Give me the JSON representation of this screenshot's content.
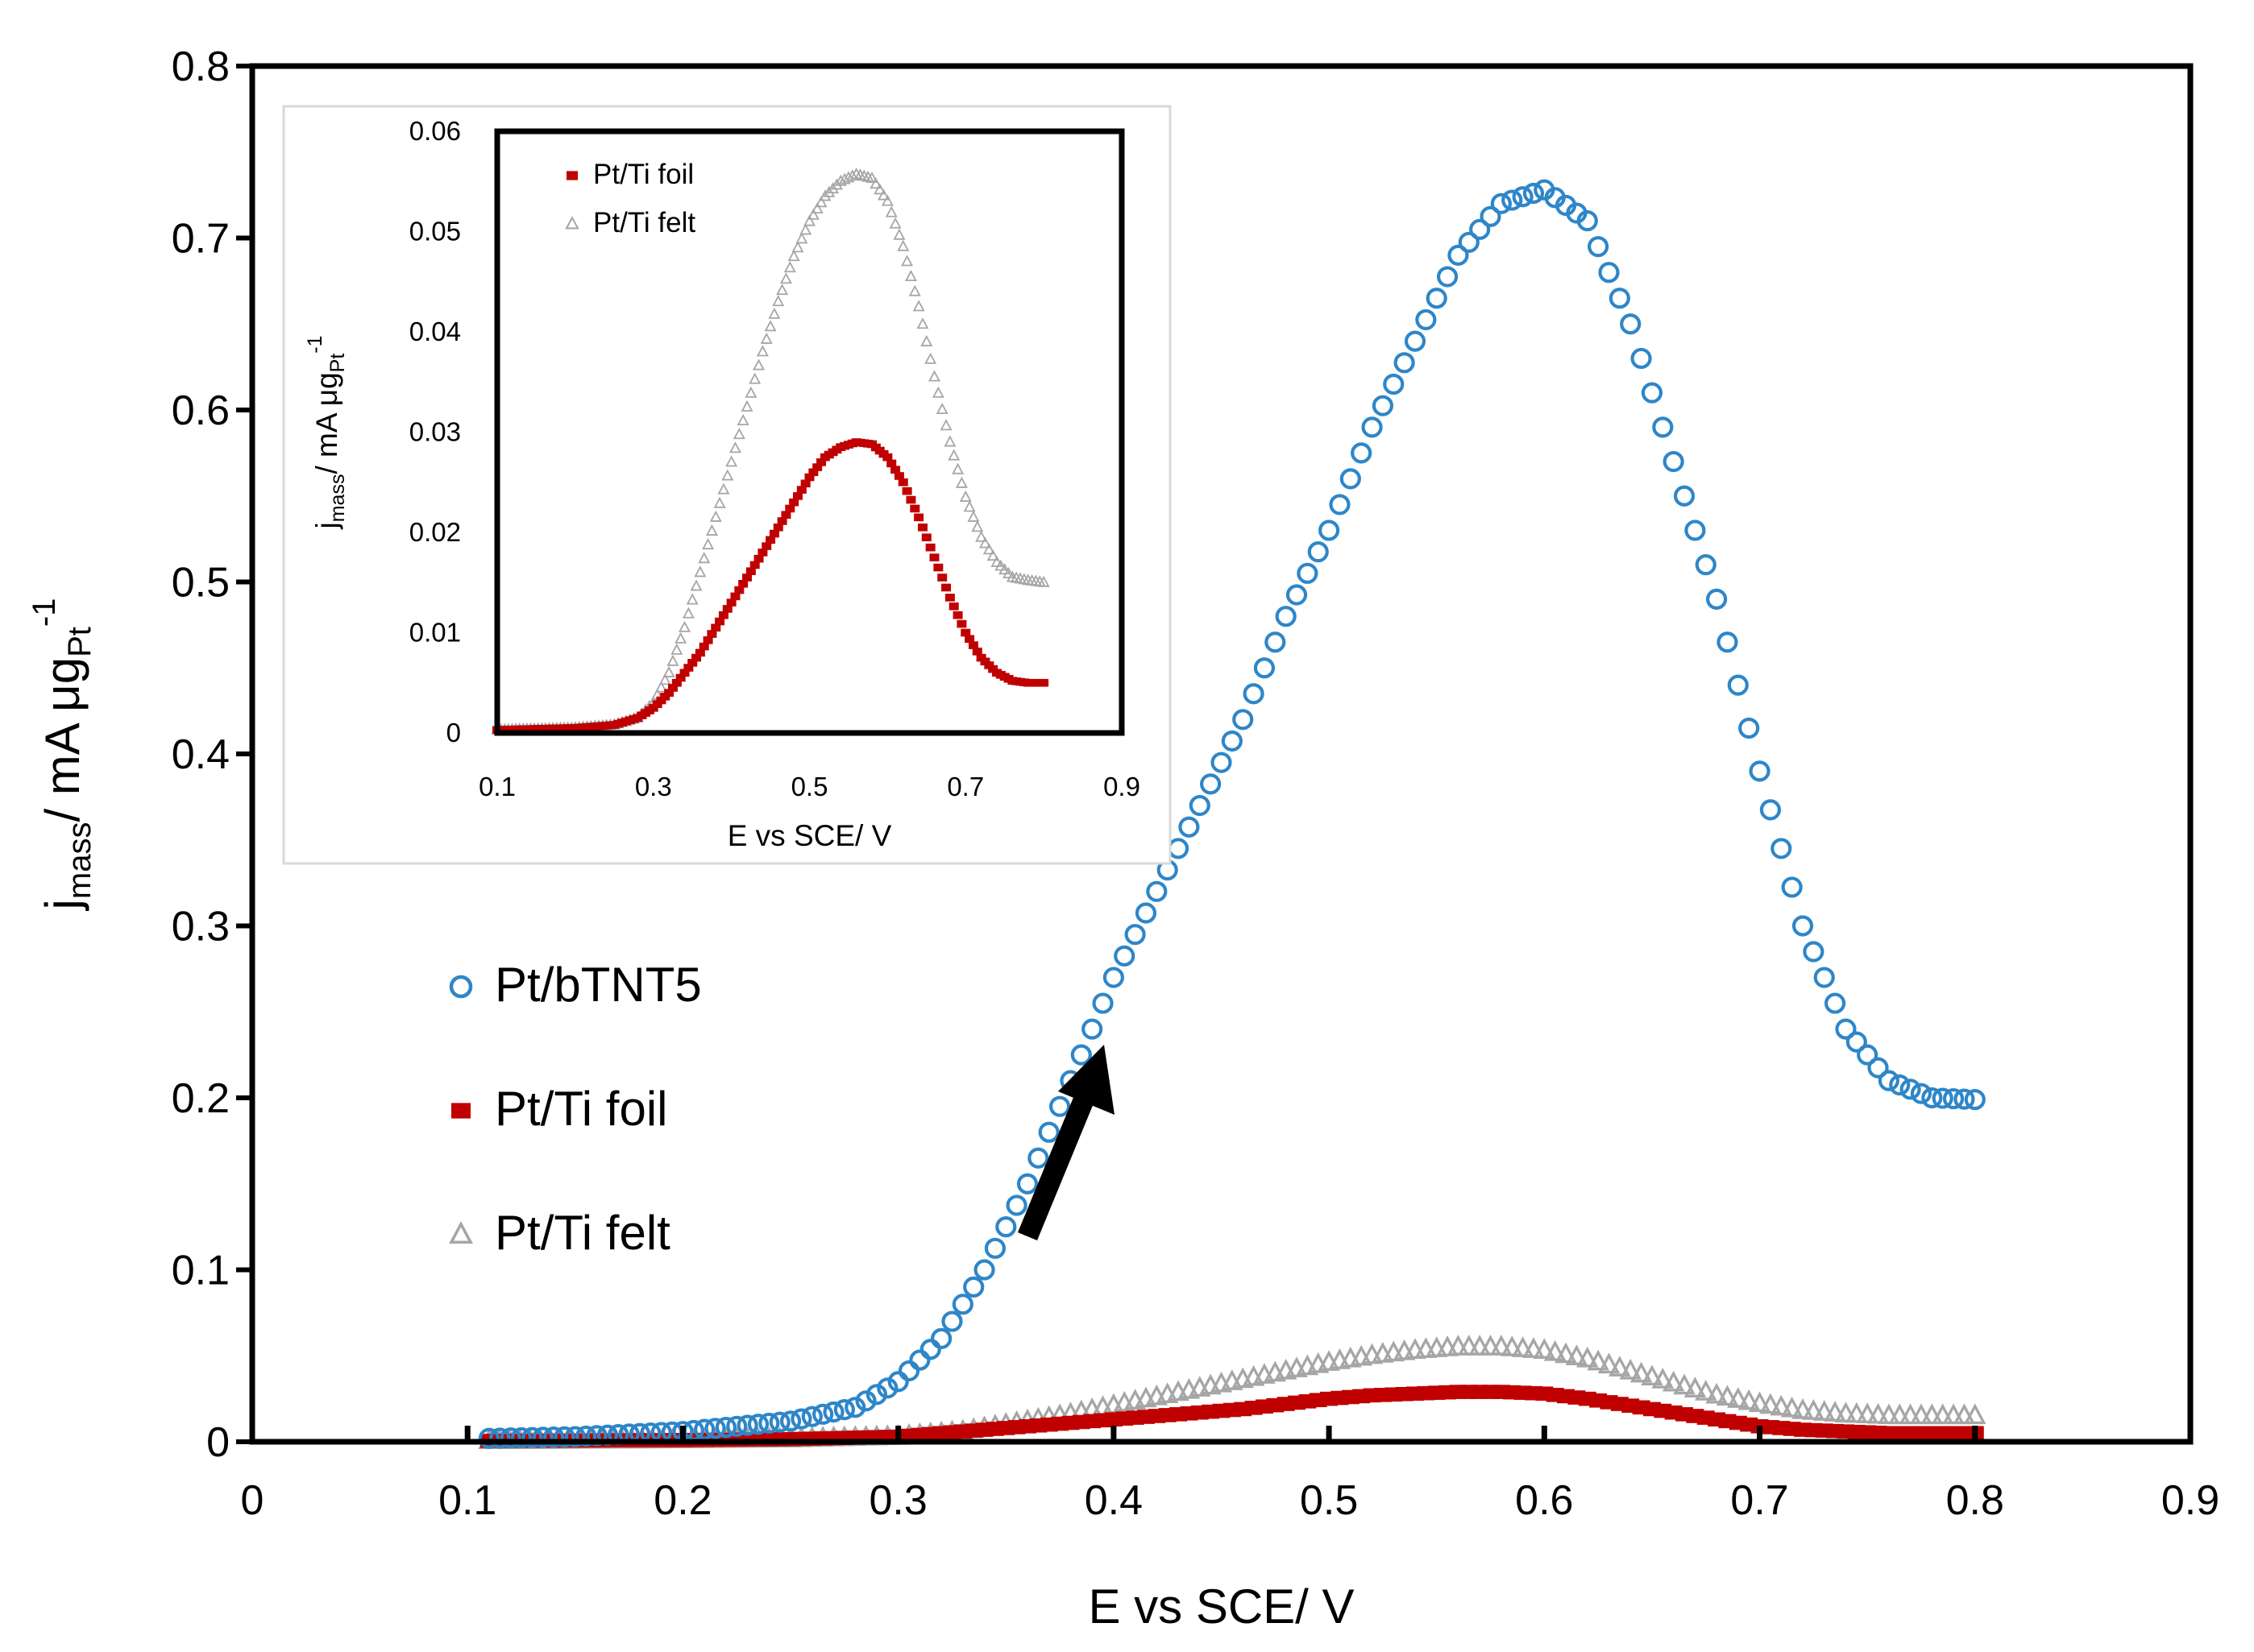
{
  "chart_data": [
    {
      "type": "scatter",
      "title": "",
      "xlabel": "E vs SCE/ V",
      "ylabel": {
        "j": "j",
        "sub": "mass",
        "unit": "/ mA μg",
        "unit_sub": "Pt",
        "unit_sup": "-1"
      },
      "xlim": [
        0,
        0.9
      ],
      "ylim": [
        0,
        0.8
      ],
      "x_ticks": [
        "0",
        "0.1",
        "0.2",
        "0.3",
        "0.4",
        "0.5",
        "0.6",
        "0.7",
        "0.8",
        "0.9"
      ],
      "y_ticks": [
        "0",
        "0.1",
        "0.2",
        "0.3",
        "0.4",
        "0.5",
        "0.6",
        "0.7",
        "0.8"
      ],
      "grid": false,
      "legend_position": "left-middle",
      "annotation": "black arrow pointing up-right toward the Pt/bTNT5 curve near E = 0.4 V",
      "series": [
        {
          "name": "Pt/bTNT5",
          "marker": "open-circle",
          "color": "#2E86C8",
          "points": [
            [
              0.11,
              0.002
            ],
            [
              0.15,
              0.003
            ],
            [
              0.2,
              0.006
            ],
            [
              0.25,
              0.012
            ],
            [
              0.28,
              0.02
            ],
            [
              0.3,
              0.035
            ],
            [
              0.32,
              0.06
            ],
            [
              0.34,
              0.1
            ],
            [
              0.36,
              0.15
            ],
            [
              0.38,
              0.21
            ],
            [
              0.4,
              0.27
            ],
            [
              0.42,
              0.32
            ],
            [
              0.44,
              0.37
            ],
            [
              0.46,
              0.42
            ],
            [
              0.48,
              0.48
            ],
            [
              0.5,
              0.53
            ],
            [
              0.52,
              0.59
            ],
            [
              0.54,
              0.64
            ],
            [
              0.56,
              0.69
            ],
            [
              0.58,
              0.72
            ],
            [
              0.6,
              0.728
            ],
            [
              0.62,
              0.71
            ],
            [
              0.64,
              0.65
            ],
            [
              0.66,
              0.57
            ],
            [
              0.68,
              0.49
            ],
            [
              0.7,
              0.39
            ],
            [
              0.72,
              0.3
            ],
            [
              0.74,
              0.24
            ],
            [
              0.76,
              0.21
            ],
            [
              0.78,
              0.2
            ],
            [
              0.8,
              0.199
            ]
          ]
        },
        {
          "name": "Pt/Ti foil",
          "marker": "filled-square",
          "color": "#C00000",
          "points": [
            [
              0.11,
              0.0005
            ],
            [
              0.2,
              0.001
            ],
            [
              0.25,
              0.0015
            ],
            [
              0.3,
              0.003
            ],
            [
              0.33,
              0.006
            ],
            [
              0.36,
              0.009
            ],
            [
              0.38,
              0.011
            ],
            [
              0.4,
              0.013
            ],
            [
              0.42,
              0.015
            ],
            [
              0.44,
              0.017
            ],
            [
              0.46,
              0.019
            ],
            [
              0.48,
              0.022
            ],
            [
              0.5,
              0.025
            ],
            [
              0.52,
              0.027
            ],
            [
              0.54,
              0.028
            ],
            [
              0.56,
              0.029
            ],
            [
              0.58,
              0.029
            ],
            [
              0.6,
              0.028
            ],
            [
              0.62,
              0.025
            ],
            [
              0.64,
              0.021
            ],
            [
              0.66,
              0.017
            ],
            [
              0.68,
              0.013
            ],
            [
              0.7,
              0.009
            ],
            [
              0.72,
              0.007
            ],
            [
              0.74,
              0.006
            ],
            [
              0.76,
              0.005
            ],
            [
              0.78,
              0.005
            ],
            [
              0.8,
              0.005
            ]
          ]
        },
        {
          "name": "Pt/Ti felt",
          "marker": "open-triangle",
          "color": "#A6A6A6",
          "points": [
            [
              0.11,
              0.0005
            ],
            [
              0.2,
              0.001
            ],
            [
              0.25,
              0.0015
            ],
            [
              0.3,
              0.003
            ],
            [
              0.33,
              0.006
            ],
            [
              0.36,
              0.012
            ],
            [
              0.38,
              0.016
            ],
            [
              0.4,
              0.021
            ],
            [
              0.42,
              0.026
            ],
            [
              0.44,
              0.031
            ],
            [
              0.46,
              0.036
            ],
            [
              0.48,
              0.041
            ],
            [
              0.5,
              0.046
            ],
            [
              0.52,
              0.05
            ],
            [
              0.54,
              0.053
            ],
            [
              0.56,
              0.055
            ],
            [
              0.58,
              0.055
            ],
            [
              0.6,
              0.053
            ],
            [
              0.62,
              0.048
            ],
            [
              0.64,
              0.041
            ],
            [
              0.66,
              0.034
            ],
            [
              0.68,
              0.027
            ],
            [
              0.7,
              0.022
            ],
            [
              0.72,
              0.018
            ],
            [
              0.74,
              0.016
            ],
            [
              0.76,
              0.015
            ],
            [
              0.78,
              0.015
            ],
            [
              0.8,
              0.015
            ]
          ]
        }
      ]
    },
    {
      "type": "scatter",
      "title": "",
      "xlabel": "E vs SCE/ V",
      "ylabel": {
        "j": "j",
        "sub": "mass",
        "unit": "/ mA μg",
        "unit_sub": "Pt",
        "unit_sup": "-1"
      },
      "xlim": [
        0.1,
        0.9
      ],
      "ylim": [
        0,
        0.06
      ],
      "x_ticks": [
        "0.1",
        "0.3",
        "0.5",
        "0.7",
        "0.9"
      ],
      "y_ticks": [
        "0",
        "0.01",
        "0.02",
        "0.03",
        "0.04",
        "0.05",
        "0.06"
      ],
      "grid": false,
      "legend_position": "top-left",
      "series": [
        {
          "name": "Pt/Ti foil",
          "marker": "filled-square",
          "color": "#C00000",
          "points": [
            [
              0.1,
              0.0003
            ],
            [
              0.2,
              0.0005
            ],
            [
              0.25,
              0.0008
            ],
            [
              0.28,
              0.0015
            ],
            [
              0.3,
              0.0025
            ],
            [
              0.32,
              0.004
            ],
            [
              0.34,
              0.006
            ],
            [
              0.36,
              0.008
            ],
            [
              0.38,
              0.0105
            ],
            [
              0.4,
              0.013
            ],
            [
              0.42,
              0.0155
            ],
            [
              0.44,
              0.018
            ],
            [
              0.46,
              0.0205
            ],
            [
              0.48,
              0.023
            ],
            [
              0.5,
              0.0255
            ],
            [
              0.52,
              0.0275
            ],
            [
              0.54,
              0.0285
            ],
            [
              0.56,
              0.029
            ],
            [
              0.58,
              0.0288
            ],
            [
              0.6,
              0.0275
            ],
            [
              0.62,
              0.025
            ],
            [
              0.64,
              0.0215
            ],
            [
              0.66,
              0.0175
            ],
            [
              0.68,
              0.0135
            ],
            [
              0.7,
              0.01
            ],
            [
              0.72,
              0.0075
            ],
            [
              0.74,
              0.006
            ],
            [
              0.76,
              0.0052
            ],
            [
              0.78,
              0.005
            ],
            [
              0.8,
              0.005
            ]
          ]
        },
        {
          "name": "Pt/Ti felt",
          "marker": "open-triangle",
          "color": "#A6A6A6",
          "points": [
            [
              0.1,
              0.0003
            ],
            [
              0.2,
              0.0005
            ],
            [
              0.25,
              0.0008
            ],
            [
              0.28,
              0.0015
            ],
            [
              0.3,
              0.003
            ],
            [
              0.32,
              0.006
            ],
            [
              0.34,
              0.0105
            ],
            [
              0.36,
              0.016
            ],
            [
              0.38,
              0.0215
            ],
            [
              0.4,
              0.027
            ],
            [
              0.42,
              0.0325
            ],
            [
              0.44,
              0.038
            ],
            [
              0.46,
              0.043
            ],
            [
              0.48,
              0.0475
            ],
            [
              0.5,
              0.051
            ],
            [
              0.52,
              0.0535
            ],
            [
              0.54,
              0.055
            ],
            [
              0.56,
              0.0557
            ],
            [
              0.58,
              0.0553
            ],
            [
              0.6,
              0.053
            ],
            [
              0.62,
              0.0485
            ],
            [
              0.64,
              0.0425
            ],
            [
              0.66,
              0.0355
            ],
            [
              0.68,
              0.029
            ],
            [
              0.7,
              0.0235
            ],
            [
              0.72,
              0.0195
            ],
            [
              0.74,
              0.017
            ],
            [
              0.76,
              0.0155
            ],
            [
              0.78,
              0.0152
            ],
            [
              0.8,
              0.015
            ]
          ]
        }
      ]
    }
  ]
}
